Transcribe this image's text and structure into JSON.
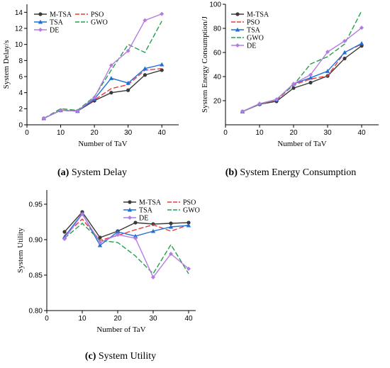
{
  "chart_data": [
    {
      "type": "line",
      "caption_label": "(a)",
      "caption_text": " System Delay",
      "xlabel": "Number of  TaV",
      "ylabel": "System Delay/s",
      "xlim": [
        0,
        45
      ],
      "ylim": [
        0,
        15
      ],
      "xticks": [
        0,
        10,
        20,
        30,
        40
      ],
      "yticks": [
        0,
        2,
        4,
        6,
        8,
        10,
        12,
        14
      ],
      "tick_decimals": 0,
      "x": [
        5,
        10,
        15,
        20,
        25,
        30,
        35,
        40
      ],
      "series": [
        {
          "name": "M-TSA",
          "color": "#3a3a3a",
          "dash": "solid",
          "marker": "circle",
          "values": [
            0.8,
            1.8,
            1.7,
            3.0,
            4.0,
            4.3,
            6.2,
            6.8
          ]
        },
        {
          "name": "PSO",
          "color": "#e8383d",
          "dash": "dash",
          "marker": "none",
          "values": [
            0.8,
            1.8,
            1.8,
            3.1,
            4.5,
            5.0,
            6.8,
            7.0
          ]
        },
        {
          "name": "TSA",
          "color": "#1f6fd6",
          "dash": "solid",
          "marker": "triangle",
          "values": [
            0.8,
            1.8,
            1.7,
            3.2,
            5.8,
            5.2,
            7.0,
            7.5
          ]
        },
        {
          "name": "GWO",
          "color": "#22a04b",
          "dash": "dash",
          "marker": "none",
          "values": [
            0.8,
            2.0,
            1.8,
            3.5,
            6.8,
            10.0,
            9.0,
            12.9
          ]
        },
        {
          "name": "DE",
          "color": "#b47ce0",
          "dash": "solid",
          "marker": "diamond",
          "values": [
            0.8,
            1.8,
            1.7,
            3.4,
            7.4,
            9.2,
            13.0,
            13.8
          ]
        }
      ],
      "legend": "top-left"
    },
    {
      "type": "line",
      "caption_label": "(b)",
      "caption_text": " System Energy Consumption",
      "xlabel": "Number of  TaV",
      "ylabel": "System Energy Consumption/J",
      "xlim": [
        0,
        45
      ],
      "ylim": [
        0,
        100
      ],
      "xticks": [
        0,
        10,
        20,
        30,
        40
      ],
      "yticks": [
        20,
        40,
        60,
        80,
        100
      ],
      "tick_decimals": 0,
      "x": [
        5,
        10,
        15,
        20,
        25,
        30,
        35,
        40
      ],
      "series": [
        {
          "name": "M-TSA",
          "color": "#3a3a3a",
          "dash": "solid",
          "marker": "circle",
          "values": [
            11,
            17,
            19.5,
            30.5,
            35,
            40.5,
            55,
            65.5
          ]
        },
        {
          "name": "PSO",
          "color": "#e8383d",
          "dash": "dash",
          "marker": "none",
          "values": [
            11,
            17,
            20.5,
            33,
            38,
            40.5,
            60,
            67
          ]
        },
        {
          "name": "TSA",
          "color": "#1f6fd6",
          "dash": "solid",
          "marker": "triangle",
          "values": [
            11,
            17.5,
            21,
            34,
            39,
            44.5,
            60,
            67.5
          ]
        },
        {
          "name": "GWO",
          "color": "#22a04b",
          "dash": "dash",
          "marker": "none",
          "values": [
            11,
            17,
            21,
            33,
            50.5,
            56.5,
            67,
            94.5
          ]
        },
        {
          "name": "DE",
          "color": "#b47ce0",
          "dash": "solid",
          "marker": "diamond",
          "values": [
            11,
            17.5,
            21,
            34,
            41.5,
            60.5,
            69.5,
            80.5
          ]
        }
      ],
      "legend": "top-left"
    },
    {
      "type": "line",
      "caption_label": "(c)",
      "caption_text": " System Utility",
      "xlabel": "Number of  TaV",
      "ylabel": "System Utility",
      "xlim": [
        0,
        42
      ],
      "ylim": [
        0.8,
        0.97
      ],
      "xticks": [
        0,
        10,
        20,
        30,
        40
      ],
      "yticks": [
        0.8,
        0.85,
        0.9,
        0.95
      ],
      "tick_decimals": 2,
      "x": [
        5,
        10,
        15,
        20,
        25,
        30,
        35,
        40
      ],
      "series": [
        {
          "name": "M-TSA",
          "color": "#3a3a3a",
          "dash": "solid",
          "marker": "circle",
          "values": [
            0.911,
            0.939,
            0.903,
            0.912,
            0.924,
            0.922,
            0.923,
            0.924
          ]
        },
        {
          "name": "PSO",
          "color": "#e8383d",
          "dash": "dash",
          "marker": "none",
          "values": [
            0.906,
            0.929,
            0.899,
            0.906,
            0.914,
            0.921,
            0.912,
            0.921
          ]
        },
        {
          "name": "TSA",
          "color": "#1f6fd6",
          "dash": "solid",
          "marker": "triangle",
          "values": [
            0.904,
            0.937,
            0.892,
            0.911,
            0.905,
            0.912,
            0.918,
            0.92
          ]
        },
        {
          "name": "GWO",
          "color": "#22a04b",
          "dash": "dash",
          "marker": "none",
          "values": [
            0.902,
            0.923,
            0.899,
            0.896,
            0.877,
            0.852,
            0.893,
            0.852
          ]
        },
        {
          "name": "DE",
          "color": "#b47ce0",
          "dash": "solid",
          "marker": "diamond",
          "values": [
            0.901,
            0.936,
            0.896,
            0.907,
            0.902,
            0.847,
            0.88,
            0.859
          ]
        }
      ],
      "legend": "top-right"
    }
  ]
}
